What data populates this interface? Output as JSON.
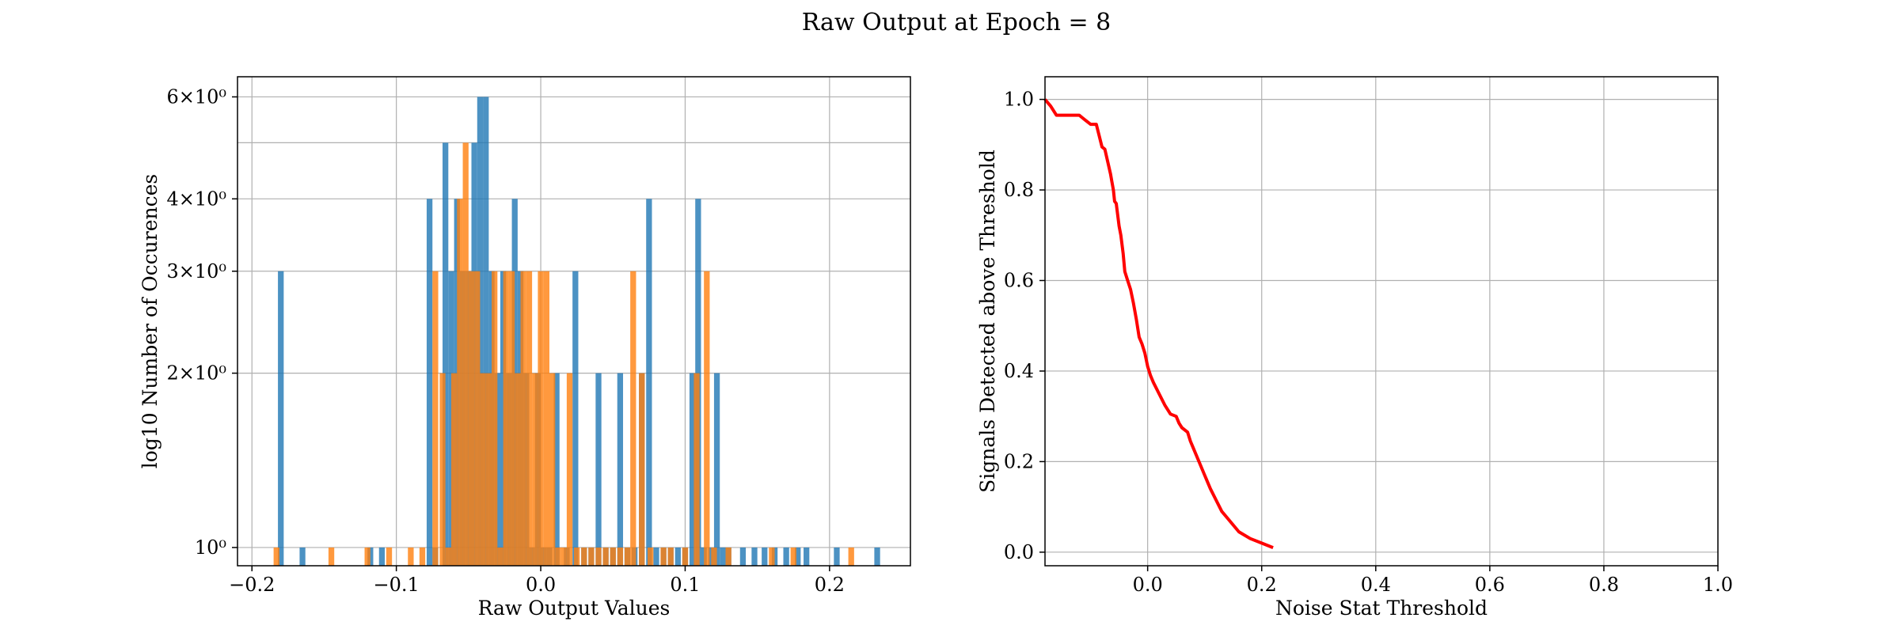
{
  "figure": {
    "suptitle": "Raw Output at Epoch = 8"
  },
  "colors": {
    "blue": "#1f77b4",
    "orange": "#ff7f0e",
    "red": "#ff0000",
    "grid": "#b0b0b0"
  },
  "chart_data": [
    {
      "type": "bar",
      "title": "",
      "xlabel": "Raw Output Values",
      "ylabel": "log10 Number of Occurences",
      "y_scale": "log",
      "xlim": [
        -0.21,
        0.256
      ],
      "ylim": [
        0.93,
        6.5
      ],
      "xticks": [
        -0.2,
        -0.1,
        0.0,
        0.1,
        0.2
      ],
      "xtick_labels": [
        "−0.2",
        "−0.1",
        "0.0",
        "0.1",
        "0.2"
      ],
      "yticks": [
        1,
        2,
        3,
        4,
        6
      ],
      "ytick_labels": [
        "10⁰",
        "2×10⁰",
        "3×10⁰",
        "4×10⁰",
        "6×10⁰"
      ],
      "grid": true,
      "bin_width": 0.004,
      "series": [
        {
          "color": "blue",
          "bars": [
            [
              -0.18,
              3
            ],
            [
              -0.165,
              1
            ],
            [
              -0.118,
              1
            ],
            [
              -0.11,
              1
            ],
            [
              -0.077,
              4
            ],
            [
              -0.073,
              1
            ],
            [
              -0.066,
              5
            ],
            [
              -0.062,
              3
            ],
            [
              -0.058,
              4
            ],
            [
              -0.054,
              3
            ],
            [
              -0.05,
              3
            ],
            [
              -0.046,
              5
            ],
            [
              -0.042,
              6
            ],
            [
              -0.038,
              6
            ],
            [
              -0.034,
              3
            ],
            [
              -0.03,
              2
            ],
            [
              -0.026,
              3
            ],
            [
              -0.022,
              2
            ],
            [
              -0.018,
              4
            ],
            [
              -0.014,
              3
            ],
            [
              -0.01,
              2
            ],
            [
              -0.006,
              1
            ],
            [
              -0.002,
              2
            ],
            [
              0.002,
              1
            ],
            [
              0.006,
              1
            ],
            [
              0.011,
              2
            ],
            [
              0.018,
              1
            ],
            [
              0.024,
              3
            ],
            [
              0.03,
              1
            ],
            [
              0.035,
              1
            ],
            [
              0.04,
              2
            ],
            [
              0.045,
              1
            ],
            [
              0.05,
              1
            ],
            [
              0.055,
              2
            ],
            [
              0.06,
              1
            ],
            [
              0.065,
              1
            ],
            [
              0.07,
              2
            ],
            [
              0.075,
              4
            ],
            [
              0.08,
              1
            ],
            [
              0.085,
              1
            ],
            [
              0.09,
              1
            ],
            [
              0.095,
              1
            ],
            [
              0.1,
              1
            ],
            [
              0.105,
              2
            ],
            [
              0.109,
              4
            ],
            [
              0.113,
              1
            ],
            [
              0.118,
              1
            ],
            [
              0.122,
              2
            ],
            [
              0.126,
              1
            ],
            [
              0.13,
              1
            ],
            [
              0.14,
              1
            ],
            [
              0.148,
              1
            ],
            [
              0.155,
              1
            ],
            [
              0.162,
              1
            ],
            [
              0.17,
              1
            ],
            [
              0.178,
              1
            ],
            [
              0.184,
              1
            ],
            [
              0.205,
              1
            ],
            [
              0.233,
              1
            ]
          ]
        },
        {
          "color": "orange",
          "bars": [
            [
              -0.183,
              1
            ],
            [
              -0.145,
              1
            ],
            [
              -0.12,
              1
            ],
            [
              -0.105,
              1
            ],
            [
              -0.09,
              1
            ],
            [
              -0.082,
              1
            ],
            [
              -0.073,
              3
            ],
            [
              -0.068,
              2
            ],
            [
              -0.064,
              1
            ],
            [
              -0.06,
              2
            ],
            [
              -0.056,
              4
            ],
            [
              -0.052,
              5
            ],
            [
              -0.048,
              3
            ],
            [
              -0.044,
              3
            ],
            [
              -0.04,
              2
            ],
            [
              -0.036,
              2
            ],
            [
              -0.032,
              3
            ],
            [
              -0.028,
              1
            ],
            [
              -0.024,
              3
            ],
            [
              -0.02,
              3
            ],
            [
              -0.016,
              2
            ],
            [
              -0.012,
              3
            ],
            [
              -0.008,
              3
            ],
            [
              -0.004,
              2
            ],
            [
              0.0,
              3
            ],
            [
              0.004,
              3
            ],
            [
              0.008,
              2
            ],
            [
              0.012,
              1
            ],
            [
              0.016,
              1
            ],
            [
              0.02,
              2
            ],
            [
              0.025,
              1
            ],
            [
              0.03,
              1
            ],
            [
              0.035,
              1
            ],
            [
              0.04,
              1
            ],
            [
              0.045,
              1
            ],
            [
              0.05,
              1
            ],
            [
              0.055,
              1
            ],
            [
              0.06,
              1
            ],
            [
              0.064,
              3
            ],
            [
              0.07,
              2
            ],
            [
              0.076,
              1
            ],
            [
              0.085,
              1
            ],
            [
              0.09,
              1
            ],
            [
              0.1,
              1
            ],
            [
              0.108,
              2
            ],
            [
              0.115,
              3
            ],
            [
              0.12,
              1
            ],
            [
              0.13,
              1
            ],
            [
              0.16,
              1
            ],
            [
              0.175,
              1
            ],
            [
              0.215,
              1
            ]
          ]
        }
      ]
    },
    {
      "type": "line",
      "title": "",
      "xlabel": "Noise Stat Threshold",
      "ylabel": "Signals Detected above Threshold",
      "xlim": [
        -0.18,
        1.0
      ],
      "ylim": [
        -0.03,
        1.05
      ],
      "xticks": [
        0.0,
        0.2,
        0.4,
        0.6,
        0.8,
        1.0
      ],
      "xtick_labels": [
        "0.0",
        "0.2",
        "0.4",
        "0.6",
        "0.8",
        "1.0"
      ],
      "yticks": [
        0.0,
        0.2,
        0.4,
        0.6,
        0.8,
        1.0
      ],
      "ytick_labels": [
        "0.0",
        "0.2",
        "0.4",
        "0.6",
        "0.8",
        "1.0"
      ],
      "grid": true,
      "series": [
        {
          "color": "red",
          "x": [
            -0.18,
            -0.17,
            -0.16,
            -0.12,
            -0.115,
            -0.11,
            -0.1,
            -0.09,
            -0.085,
            -0.08,
            -0.075,
            -0.065,
            -0.063,
            -0.06,
            -0.058,
            -0.055,
            -0.05,
            -0.047,
            -0.043,
            -0.04,
            -0.035,
            -0.03,
            -0.025,
            -0.02,
            -0.015,
            -0.01,
            -0.005,
            0.0,
            0.005,
            0.01,
            0.02,
            0.03,
            0.04,
            0.05,
            0.055,
            0.06,
            0.07,
            0.075,
            0.08,
            0.09,
            0.1,
            0.11,
            0.12,
            0.13,
            0.14,
            0.15,
            0.16,
            0.18,
            0.2,
            0.22
          ],
          "y": [
            1.0,
            0.985,
            0.965,
            0.965,
            0.96,
            0.955,
            0.945,
            0.945,
            0.92,
            0.895,
            0.89,
            0.835,
            0.82,
            0.8,
            0.775,
            0.77,
            0.72,
            0.7,
            0.66,
            0.62,
            0.6,
            0.58,
            0.55,
            0.515,
            0.475,
            0.46,
            0.44,
            0.41,
            0.39,
            0.375,
            0.35,
            0.325,
            0.305,
            0.3,
            0.285,
            0.275,
            0.265,
            0.245,
            0.23,
            0.2,
            0.17,
            0.14,
            0.115,
            0.09,
            0.075,
            0.06,
            0.045,
            0.03,
            0.02,
            0.01
          ]
        }
      ]
    }
  ]
}
